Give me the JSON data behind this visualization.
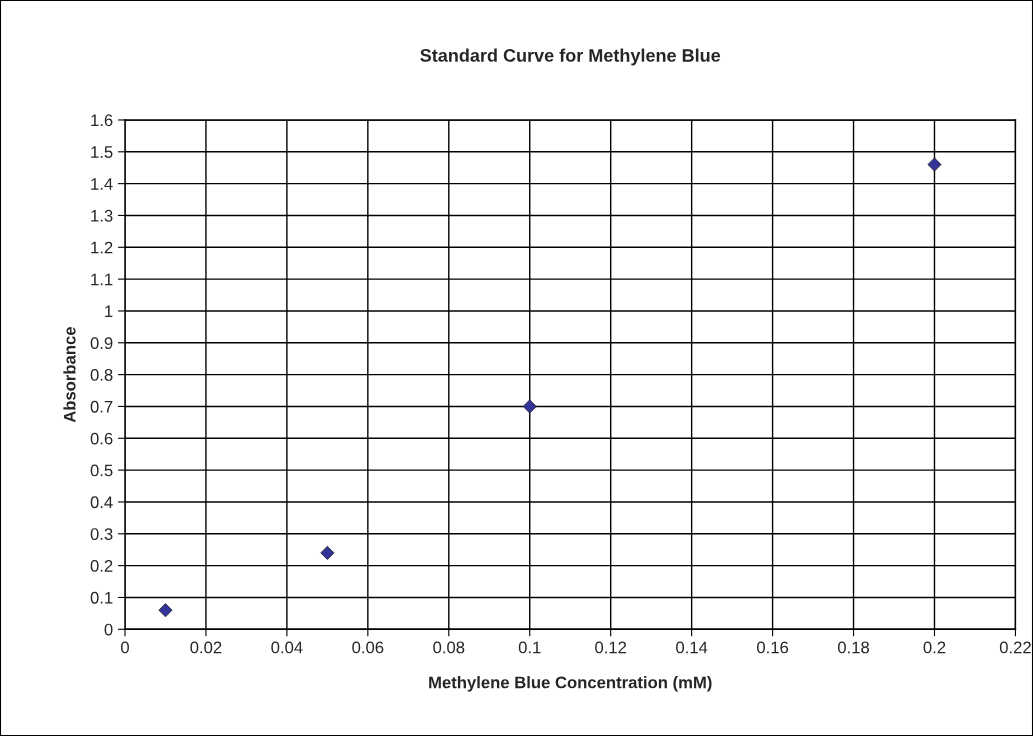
{
  "chart_data": {
    "type": "scatter",
    "title": "Standard Curve for Methylene Blue",
    "xlabel": "Methylene Blue Concentration (mM)",
    "ylabel": "Absorbance",
    "x": [
      0.01,
      0.05,
      0.1,
      0.2
    ],
    "series": [
      {
        "color": "#333399",
        "values": [
          0.06,
          0.24,
          0.7,
          1.46
        ]
      }
    ],
    "xlim": [
      0,
      0.22
    ],
    "xticks": [
      0,
      0.02,
      0.04,
      0.06,
      0.08,
      0.1,
      0.12,
      0.14,
      0.16,
      0.18,
      0.2,
      0.22
    ],
    "ylim": [
      0,
      1.6
    ],
    "yticks": [
      0,
      0.1,
      0.2,
      0.3,
      0.4,
      0.5,
      0.6,
      0.7,
      0.8,
      0.9,
      1,
      1.1,
      1.2,
      1.3,
      1.4,
      1.5,
      1.6
    ],
    "grid": true,
    "marker": "diamond",
    "legend": false
  }
}
